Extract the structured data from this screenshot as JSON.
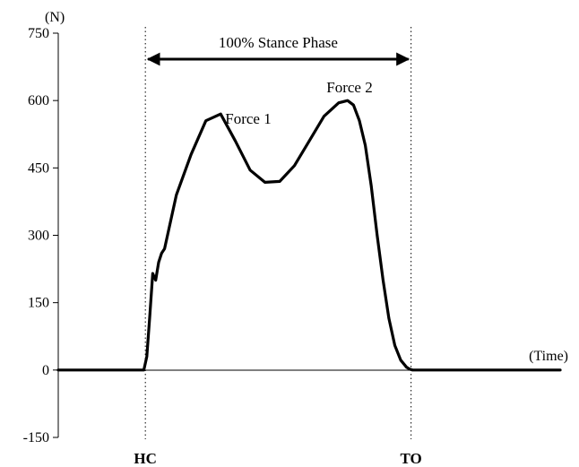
{
  "chart_data": {
    "type": "line",
    "title": "",
    "xlabel": "(Time)",
    "ylabel": "(N)",
    "ylim": [
      -150,
      750
    ],
    "y_ticks": [
      750,
      600,
      450,
      300,
      150,
      0,
      -150
    ],
    "y_tick_labels": [
      "750",
      "600",
      "450",
      "300",
      "150",
      "0",
      "-150"
    ],
    "grid": false,
    "legend": "none",
    "series": [
      {
        "x": [
          0,
          10,
          20,
          29,
          30,
          31,
          32,
          33,
          34,
          35,
          36,
          40,
          45,
          50,
          55,
          60,
          65,
          70,
          75,
          80,
          85,
          90,
          95,
          98,
          100,
          102,
          104,
          106,
          108,
          110,
          112,
          114,
          116,
          118,
          119,
          120,
          125,
          130,
          140,
          150,
          160,
          170
        ],
        "values": [
          0,
          0,
          0,
          0,
          30,
          120,
          215,
          200,
          240,
          260,
          270,
          390,
          480,
          555,
          570,
          510,
          445,
          418,
          420,
          455,
          510,
          565,
          595,
          600,
          590,
          555,
          500,
          410,
          300,
          200,
          115,
          55,
          22,
          6,
          2,
          0,
          0,
          0,
          0,
          0,
          0,
          0
        ],
        "color": "#000000"
      }
    ],
    "annotations": {
      "stance_phase": "100% Stance Phase",
      "peak1": "Force 1",
      "peak2": "Force 2",
      "hc": "HC",
      "to": "TO",
      "hc_x": 29.5,
      "to_x": 119.5
    }
  }
}
